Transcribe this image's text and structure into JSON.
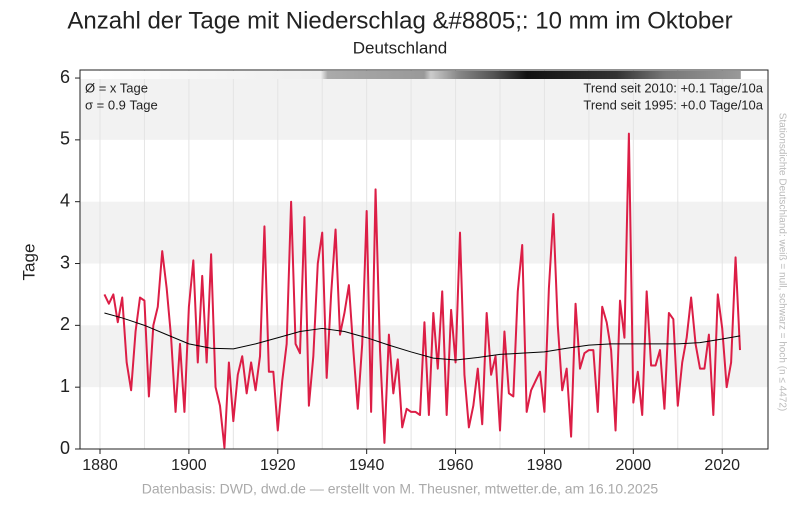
{
  "chart_data": {
    "type": "line",
    "title": "Anzahl der Tage mit Niederschlag &#8805;: 10 mm im Oktober",
    "subtitle": "Deutschland",
    "y_label": "Tage",
    "annotations": [
      "Ø = x Tage",
      "σ = 0.9 Tage",
      "Trend seit 2010: +0.1 Tage/10a",
      "Trend seit 1995: +0.0 Tage/10a"
    ],
    "side_note": "Stationsdichte Deutschland: weiß = null, schwarz = hoch (n ≤ 4472)",
    "footer": "Datenbasis: DWD, dwd.de — erstellt von M. Theusner, mtwetter.de, am 16.10.2025",
    "x": [
      1881,
      1882,
      1883,
      1884,
      1885,
      1886,
      1887,
      1888,
      1889,
      1890,
      1891,
      1892,
      1893,
      1894,
      1895,
      1896,
      1897,
      1898,
      1899,
      1900,
      1901,
      1902,
      1903,
      1904,
      1905,
      1906,
      1907,
      1908,
      1909,
      1910,
      1911,
      1912,
      1913,
      1914,
      1915,
      1916,
      1917,
      1918,
      1919,
      1920,
      1921,
      1922,
      1923,
      1924,
      1925,
      1926,
      1927,
      1928,
      1929,
      1930,
      1931,
      1932,
      1933,
      1934,
      1935,
      1936,
      1937,
      1938,
      1939,
      1940,
      1941,
      1942,
      1943,
      1944,
      1945,
      1946,
      1947,
      1948,
      1949,
      1950,
      1951,
      1952,
      1953,
      1954,
      1955,
      1956,
      1957,
      1958,
      1959,
      1960,
      1961,
      1962,
      1963,
      1964,
      1965,
      1966,
      1967,
      1968,
      1969,
      1970,
      1971,
      1972,
      1973,
      1974,
      1975,
      1976,
      1977,
      1978,
      1979,
      1980,
      1981,
      1982,
      1983,
      1984,
      1985,
      1986,
      1987,
      1988,
      1989,
      1990,
      1991,
      1992,
      1993,
      1994,
      1995,
      1996,
      1997,
      1998,
      1999,
      2000,
      2001,
      2002,
      2003,
      2004,
      2005,
      2006,
      2007,
      2008,
      2009,
      2010,
      2011,
      2012,
      2013,
      2014,
      2015,
      2016,
      2017,
      2018,
      2019,
      2020,
      2021,
      2022,
      2023,
      2024
    ],
    "series": [
      {
        "name": "Tage",
        "color": "#dc1e46",
        "values": [
          2.5,
          2.35,
          2.5,
          2.05,
          2.45,
          1.4,
          0.95,
          1.9,
          2.45,
          2.4,
          0.85,
          2.0,
          2.3,
          3.2,
          2.6,
          1.8,
          0.6,
          1.7,
          0.6,
          2.3,
          3.05,
          1.4,
          2.8,
          1.4,
          3.15,
          1.0,
          0.7,
          0.02,
          1.4,
          0.45,
          1.2,
          1.5,
          0.9,
          1.4,
          0.95,
          1.5,
          3.6,
          1.25,
          1.25,
          0.3,
          1.1,
          1.7,
          4.0,
          1.7,
          1.55,
          3.75,
          0.7,
          1.5,
          3.0,
          3.5,
          1.15,
          2.5,
          3.55,
          1.85,
          2.2,
          2.65,
          1.6,
          0.65,
          1.7,
          3.85,
          0.6,
          4.2,
          1.6,
          0.1,
          1.85,
          0.9,
          1.45,
          0.35,
          0.65,
          0.6,
          0.6,
          0.55,
          2.05,
          0.55,
          2.2,
          1.3,
          2.55,
          0.55,
          2.25,
          1.4,
          3.5,
          1.2,
          0.35,
          0.7,
          1.3,
          0.4,
          2.2,
          1.2,
          1.5,
          0.3,
          1.9,
          0.9,
          0.85,
          2.55,
          3.3,
          0.6,
          0.95,
          1.1,
          1.25,
          0.6,
          2.6,
          3.8,
          2.0,
          0.95,
          1.3,
          0.2,
          2.35,
          1.3,
          1.55,
          1.6,
          1.6,
          0.6,
          2.3,
          2.05,
          1.6,
          0.3,
          2.4,
          1.8,
          5.1,
          0.75,
          1.25,
          0.55,
          2.55,
          1.35,
          1.35,
          1.6,
          0.65,
          2.2,
          2.1,
          0.7,
          1.4,
          1.8,
          2.45,
          1.7,
          1.3,
          1.3,
          1.85,
          0.55,
          2.5,
          1.95,
          1.0,
          1.4,
          3.1,
          1.6
        ]
      },
      {
        "name": "Glättung",
        "color": "#000000",
        "x": [
          1881,
          1885,
          1890,
          1895,
          1900,
          1905,
          1910,
          1915,
          1920,
          1925,
          1930,
          1935,
          1940,
          1945,
          1950,
          1955,
          1960,
          1965,
          1970,
          1975,
          1980,
          1985,
          1990,
          1995,
          2000,
          2005,
          2010,
          2015,
          2020,
          2024
        ],
        "values": [
          2.2,
          2.12,
          2.0,
          1.85,
          1.7,
          1.63,
          1.62,
          1.7,
          1.8,
          1.9,
          1.95,
          1.9,
          1.8,
          1.68,
          1.57,
          1.47,
          1.44,
          1.48,
          1.53,
          1.55,
          1.57,
          1.63,
          1.68,
          1.7,
          1.7,
          1.7,
          1.7,
          1.72,
          1.78,
          1.83
        ]
      }
    ],
    "xlim": [
      1875.5,
      2030.3
    ],
    "ylim": [
      0,
      6.13
    ],
    "xticks": [
      1880,
      1900,
      1920,
      1940,
      1960,
      1980,
      2000,
      2020
    ],
    "xgrid": [
      1880,
      1890,
      1900,
      1910,
      1920,
      1930,
      1940,
      1950,
      1960,
      1970,
      1980,
      1990,
      2000,
      2010,
      2020
    ],
    "yticks": [
      0,
      1,
      2,
      3,
      4,
      5,
      6
    ],
    "grid": true
  }
}
